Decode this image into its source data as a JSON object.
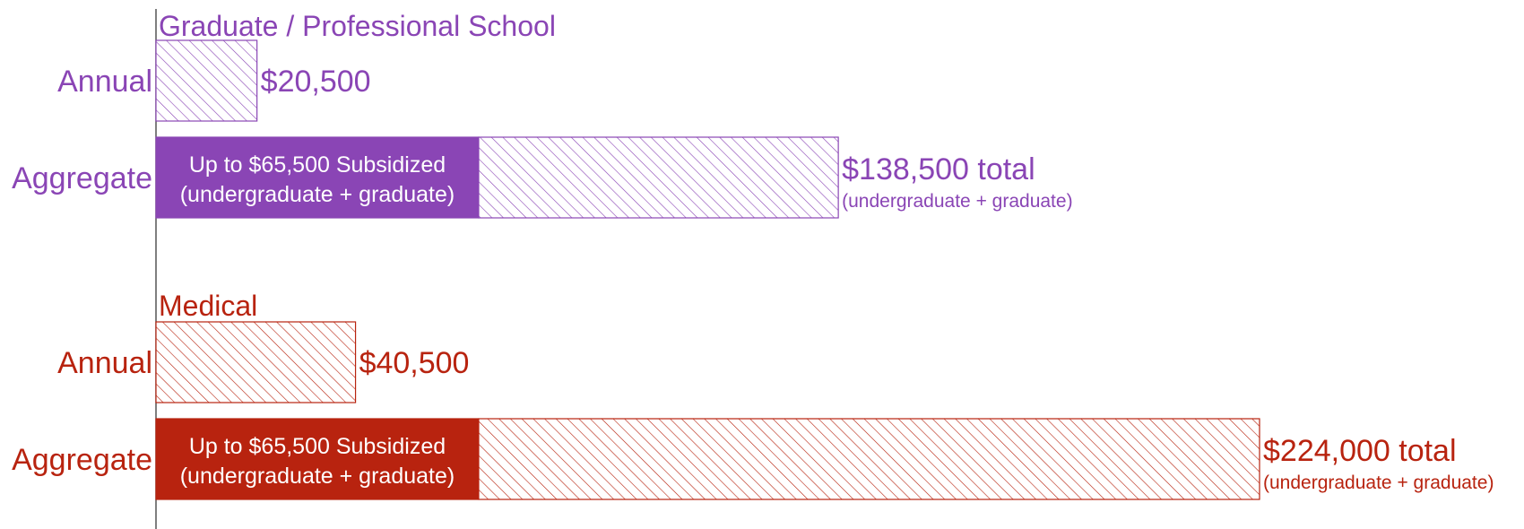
{
  "chart_data": {
    "type": "bar",
    "orientation": "horizontal",
    "stacked": true,
    "title": "",
    "xlabel": "",
    "ylabel": "",
    "xlim": [
      0,
      224000
    ],
    "grid": false,
    "groups": [
      {
        "name": "Graduate / Professional School",
        "color": "#8a45b5",
        "rows": [
          {
            "label": "Annual",
            "segments": [
              {
                "value": 20500,
                "fill": "hatched",
                "label": ""
              }
            ],
            "total": 20500,
            "value_label": "$20,500",
            "value_note": ""
          },
          {
            "label": "Aggregate",
            "segments": [
              {
                "value": 65500,
                "fill": "solid",
                "label": "Up to $65,500 Subsidized",
                "label2": "(undergraduate + graduate)"
              },
              {
                "value": 73000,
                "fill": "hatched",
                "label": ""
              }
            ],
            "total": 138500,
            "value_label": "$138,500 total",
            "value_note": "(undergraduate + graduate)"
          }
        ]
      },
      {
        "name": "Medical",
        "color": "#b8230f",
        "rows": [
          {
            "label": "Annual",
            "segments": [
              {
                "value": 40500,
                "fill": "hatched",
                "label": ""
              }
            ],
            "total": 40500,
            "value_label": "$40,500",
            "value_note": ""
          },
          {
            "label": "Aggregate",
            "segments": [
              {
                "value": 65500,
                "fill": "solid",
                "label": "Up to $65,500 Subsidized",
                "label2": "(undergraduate + graduate)"
              },
              {
                "value": 158500,
                "fill": "hatched",
                "label": ""
              }
            ],
            "total": 224000,
            "value_label": "$224,000 total",
            "value_note": "(undergraduate + graduate)"
          }
        ]
      }
    ]
  }
}
